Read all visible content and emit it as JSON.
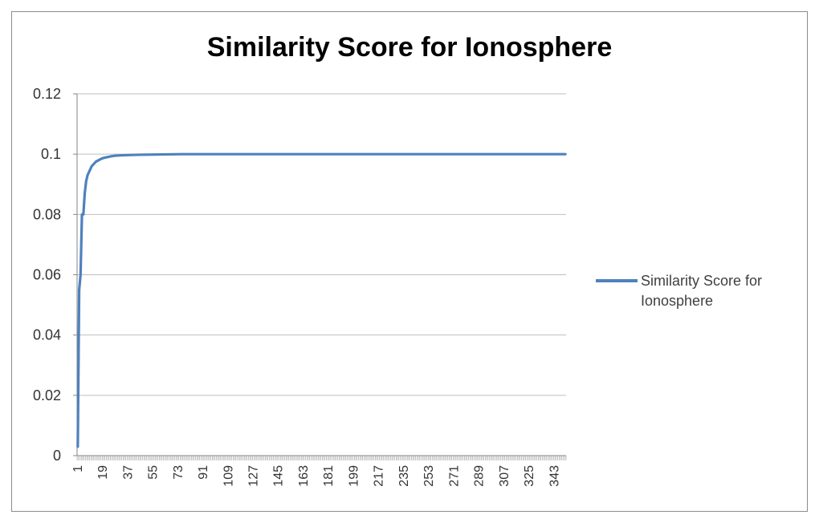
{
  "chart_data": {
    "type": "line",
    "title": "Similarity Score for Ionosphere",
    "xlabel": "",
    "ylabel": "",
    "ylim": [
      0,
      0.12
    ],
    "yticks": [
      "0",
      "0.02",
      "0.04",
      "0.06",
      "0.08",
      "0.1",
      "0.12"
    ],
    "xlim": [
      1,
      351
    ],
    "xticks": [
      "1",
      "19",
      "37",
      "55",
      "73",
      "91",
      "109",
      "127",
      "145",
      "163",
      "181",
      "199",
      "217",
      "235",
      "253",
      "271",
      "289",
      "307",
      "325",
      "343"
    ],
    "grid": true,
    "legend_position": "right",
    "series": [
      {
        "name": "Similarity Score for Ionosphere",
        "color": "#4f81bd",
        "x": [
          1,
          2,
          3,
          4,
          5,
          6,
          7,
          8,
          9,
          10,
          11,
          12,
          13,
          14,
          16,
          18,
          20,
          22,
          25,
          28,
          32,
          37,
          45,
          60,
          76,
          100,
          150,
          200,
          250,
          300,
          351
        ],
        "y": [
          0.003,
          0.055,
          0.06,
          0.08,
          0.08,
          0.087,
          0.091,
          0.093,
          0.094,
          0.095,
          0.096,
          0.0965,
          0.097,
          0.0975,
          0.098,
          0.0985,
          0.0988,
          0.099,
          0.0993,
          0.0995,
          0.0996,
          0.0997,
          0.0998,
          0.0999,
          0.1,
          0.1,
          0.1,
          0.1,
          0.1,
          0.1,
          0.1
        ]
      }
    ]
  }
}
